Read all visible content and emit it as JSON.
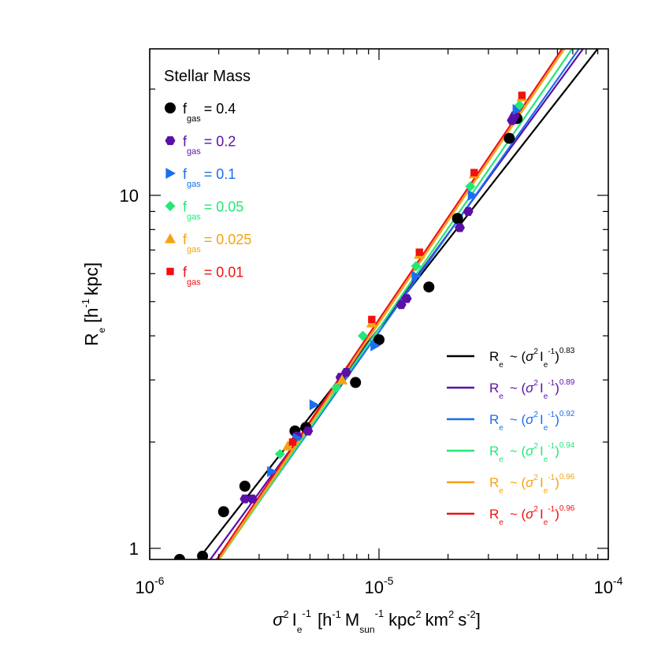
{
  "chart_data": {
    "type": "scatter",
    "x_scale": "log",
    "y_scale": "log",
    "xlim": [
      1e-06,
      0.0001
    ],
    "ylim": [
      0.93,
      26
    ],
    "x_ticks": [
      {
        "value": 1e-06,
        "base": "10",
        "exp": "-6"
      },
      {
        "value": 1e-05,
        "base": "10",
        "exp": "-5"
      },
      {
        "value": 0.0001,
        "base": "10",
        "exp": "-4"
      }
    ],
    "y_ticks": [
      {
        "value": 1,
        "label": "1"
      },
      {
        "value": 10,
        "label": "10"
      }
    ],
    "xlabel": {
      "sigma": "σ",
      "sigma_sup": "2",
      "I": "I",
      "I_sub": "e",
      "I_sup": "-1",
      "open": "[h",
      "h_sup": "-1",
      "M": "M",
      "M_sub": "sun",
      "M_sup": "-1",
      "kpc": "kpc",
      "kpc_sup": "2",
      "km": "km",
      "km_sup": "2",
      "s": "s",
      "s_sup": "-2",
      "close": "]"
    },
    "ylabel": {
      "R": "R",
      "R_sub": "e",
      "open": "[h",
      "h_sup": "-1",
      "close": "kpc]"
    },
    "title": "Stellar Mass",
    "legend_position": "top-left",
    "fit_legend_position": "bottom-right",
    "series": [
      {
        "name": "f",
        "sub": "gas",
        "value": "= 0.4",
        "color": "#000000",
        "marker": "circle",
        "exponent": "0.83",
        "fit": {
          "slope": 0.83,
          "x0": 1e-05,
          "y0": 4.2
        },
        "points": [
          [
            1.35e-06,
            0.93
          ],
          [
            1.7e-06,
            0.95
          ],
          [
            2.1e-06,
            1.27
          ],
          [
            2.6e-06,
            1.5
          ],
          [
            4.3e-06,
            2.15
          ],
          [
            4.8e-06,
            2.2
          ],
          [
            7.9e-06,
            2.95
          ],
          [
            1e-05,
            3.9
          ],
          [
            1.65e-05,
            5.5
          ],
          [
            2.2e-05,
            8.6
          ],
          [
            3.7e-05,
            14.5
          ],
          [
            4e-05,
            16.5
          ]
        ]
      },
      {
        "name": "f",
        "sub": "gas",
        "value": "= 0.2",
        "color": "#5a0fa8",
        "marker": "hexagon",
        "exponent": "0.89",
        "fit": {
          "slope": 0.89,
          "x0": 1e-05,
          "y0": 4.2
        },
        "points": [
          [
            2.6e-06,
            1.38
          ],
          [
            2.8e-06,
            1.38
          ],
          [
            4.4e-06,
            2.08
          ],
          [
            4.9e-06,
            2.15
          ],
          [
            6.8e-06,
            3.05
          ],
          [
            7.2e-06,
            3.15
          ],
          [
            1.25e-05,
            4.9
          ],
          [
            1.32e-05,
            5.1
          ],
          [
            2.25e-05,
            8.1
          ],
          [
            2.45e-05,
            9.0
          ],
          [
            3.8e-05,
            16.3
          ],
          [
            3.9e-05,
            16.8
          ]
        ]
      },
      {
        "name": "f",
        "sub": "gas",
        "value": "= 0.1",
        "color": "#1a6ef0",
        "marker": "triangle-right",
        "exponent": "0.92",
        "fit": {
          "slope": 0.92,
          "x0": 1e-05,
          "y0": 4.1
        },
        "points": [
          [
            3.4e-06,
            1.65
          ],
          [
            4.4e-06,
            2.05
          ],
          [
            5.2e-06,
            2.55
          ],
          [
            9.6e-06,
            3.75
          ],
          [
            1.45e-05,
            5.9
          ],
          [
            2.55e-05,
            10.0
          ],
          [
            4e-05,
            17.5
          ]
        ]
      },
      {
        "name": "f",
        "sub": "gas",
        "value": "= 0.05",
        "color": "#22e876",
        "marker": "diamond",
        "exponent": "0.94",
        "fit": {
          "slope": 0.94,
          "x0": 1e-05,
          "y0": 4.2
        },
        "points": [
          [
            3.7e-06,
            1.85
          ],
          [
            6.5e-06,
            2.85
          ],
          [
            8.5e-06,
            4.0
          ],
          [
            1.45e-05,
            6.3
          ],
          [
            2.5e-05,
            10.6
          ],
          [
            4.1e-05,
            18.0
          ]
        ]
      },
      {
        "name": "f",
        "sub": "gas",
        "value": "= 0.025",
        "color": "#f5a30f",
        "marker": "triangle-up",
        "exponent": "0.96",
        "fit": {
          "slope": 0.96,
          "x0": 1e-05,
          "y0": 4.35
        },
        "points": [
          [
            4e-06,
            1.95
          ],
          [
            6.9e-06,
            3.0
          ],
          [
            9.3e-06,
            4.35
          ],
          [
            1.5e-05,
            6.8
          ],
          [
            2.6e-05,
            11.5
          ],
          [
            4.2e-05,
            19.0
          ]
        ]
      },
      {
        "name": "f",
        "sub": "gas",
        "value": "= 0.01",
        "color": "#f01010",
        "marker": "square",
        "exponent": "0.96",
        "fit": {
          "slope": 0.96,
          "x0": 1e-05,
          "y0": 4.45
        },
        "points": [
          [
            4.2e-06,
            2.0
          ],
          [
            9.3e-06,
            4.45
          ],
          [
            1.5e-05,
            6.9
          ],
          [
            2.6e-05,
            11.6
          ],
          [
            4.2e-05,
            19.2
          ]
        ]
      }
    ],
    "fit_label": {
      "R": "R",
      "R_sub": "e",
      "tilde": "~ (",
      "sigma": "σ",
      "sigma_sup": "2",
      "I": "I",
      "I_sub": "e",
      "I_sup": "-1",
      "close": ")"
    }
  }
}
